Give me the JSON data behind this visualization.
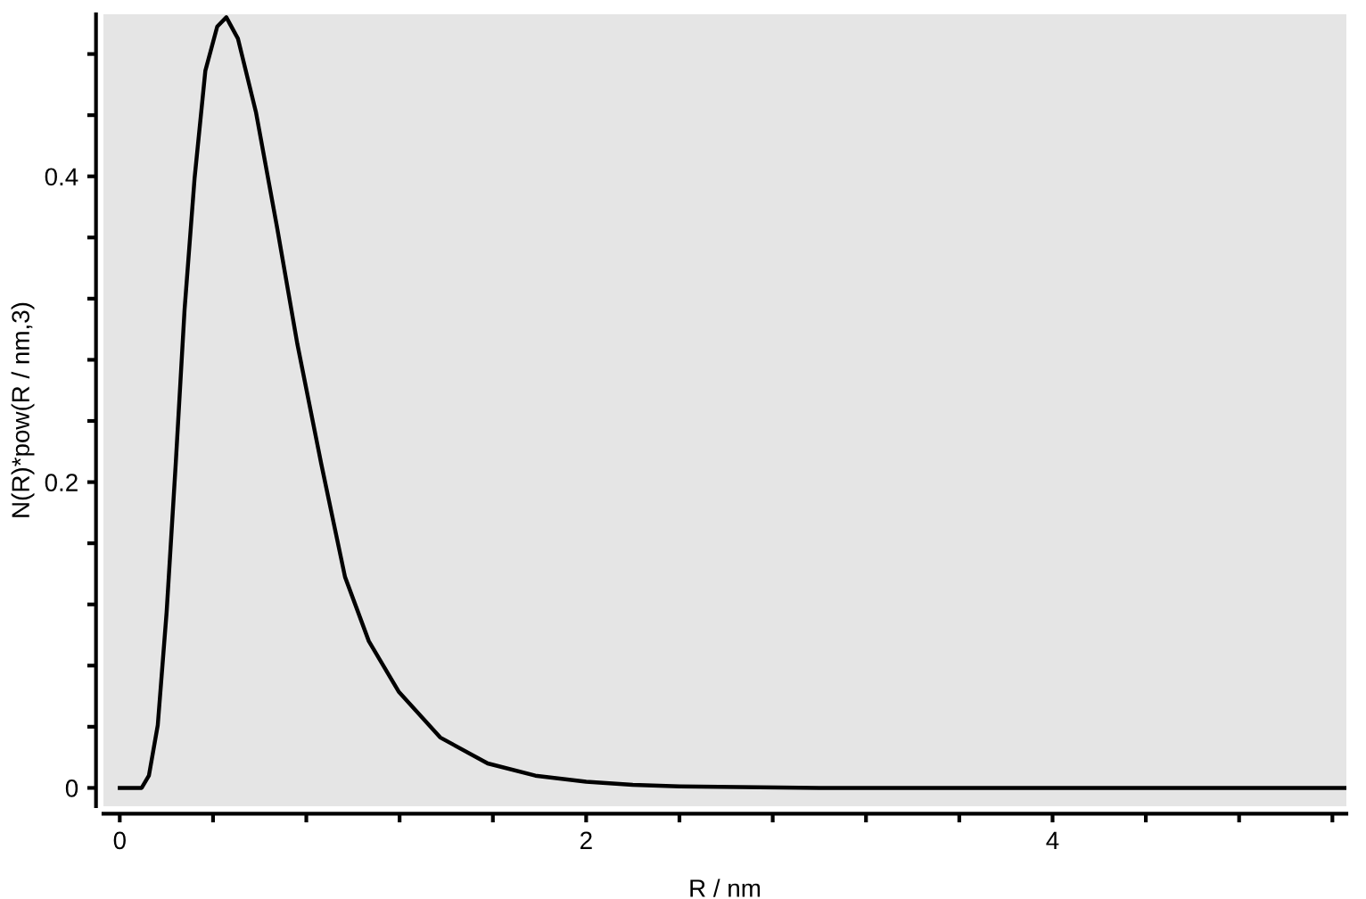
{
  "chart_data": {
    "type": "line",
    "xlabel": "R / nm",
    "ylabel": "N(R)*pow(R / nm,3)",
    "x": [
      0,
      0.094,
      0.125,
      0.163,
      0.201,
      0.24,
      0.278,
      0.321,
      0.367,
      0.418,
      0.457,
      0.507,
      0.584,
      0.673,
      0.762,
      0.864,
      0.966,
      1.068,
      1.196,
      1.374,
      1.578,
      1.782,
      2.0,
      2.2,
      2.4,
      3.0,
      4.0,
      5.26
    ],
    "series": [
      {
        "color": "#000000",
        "values": [
          0,
          0,
          0.008,
          0.041,
          0.115,
          0.212,
          0.313,
          0.399,
          0.469,
          0.498,
          0.504,
          0.49,
          0.442,
          0.368,
          0.29,
          0.212,
          0.138,
          0.096,
          0.063,
          0.033,
          0.016,
          0.008,
          0.004,
          0.002,
          0.001,
          0,
          0,
          0
        ]
      }
    ],
    "xlim": [
      -0.07,
      5.26
    ],
    "ylim": [
      -0.012,
      0.506
    ],
    "xticks": [
      0,
      {
        "value": 0.4,
        "label": null
      },
      {
        "value": 0.8,
        "label": null
      },
      {
        "value": 1.2,
        "label": null
      },
      {
        "value": 1.6,
        "label": null
      },
      2,
      {
        "value": 2.4,
        "label": null
      },
      {
        "value": 2.8,
        "label": null
      },
      {
        "value": 3.2,
        "label": null
      },
      {
        "value": 3.6,
        "label": null
      },
      4,
      {
        "value": 4.4,
        "label": null
      },
      {
        "value": 4.8,
        "label": null
      },
      {
        "value": 5.2,
        "label": null
      }
    ],
    "yticks": [
      0,
      {
        "value": 0.04,
        "label": null
      },
      {
        "value": 0.08,
        "label": null
      },
      {
        "value": 0.12,
        "label": null
      },
      {
        "value": 0.16,
        "label": null
      },
      0.2,
      {
        "value": 0.24,
        "label": null
      },
      {
        "value": 0.28,
        "label": null
      },
      {
        "value": 0.32,
        "label": null
      },
      {
        "value": 0.36,
        "label": null
      },
      0.4,
      {
        "value": 0.44,
        "label": null
      },
      {
        "value": 0.48,
        "label": null
      }
    ],
    "grid": false,
    "line_style": "solid",
    "marker": "none"
  }
}
